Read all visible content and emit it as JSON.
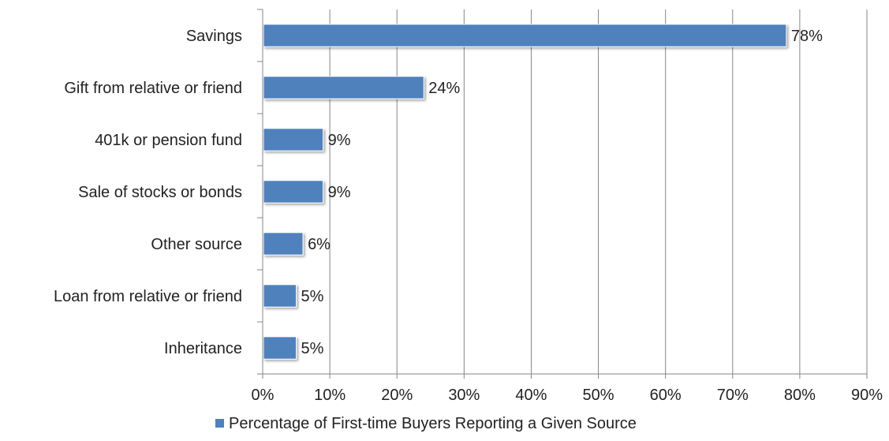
{
  "chart_data": {
    "type": "bar",
    "orientation": "horizontal",
    "title": "",
    "xlabel": "",
    "ylabel": "",
    "categories": [
      "Savings",
      "Gift from relative or friend",
      "401k or pension fund",
      "Sale of stocks or bonds",
      "Other source",
      "Loan from relative or friend",
      "Inheritance"
    ],
    "series": [
      {
        "name": "Percentage of First-time Buyers Reporting a Given Source",
        "values": [
          78,
          24,
          9,
          9,
          6,
          5,
          5
        ],
        "data_labels": [
          "78%",
          "24%",
          "9%",
          "9%",
          "6%",
          "5%",
          "5%"
        ],
        "color": "#4F81BD"
      }
    ],
    "xlim": [
      0,
      90
    ],
    "x_ticks": [
      "0%",
      "10%",
      "20%",
      "30%",
      "40%",
      "50%",
      "60%",
      "70%",
      "80%",
      "90%"
    ],
    "grid": true,
    "legend": "bottom",
    "colors": {
      "bar": "#4F81BD",
      "grid": "#868686",
      "axis": "#868686"
    }
  }
}
